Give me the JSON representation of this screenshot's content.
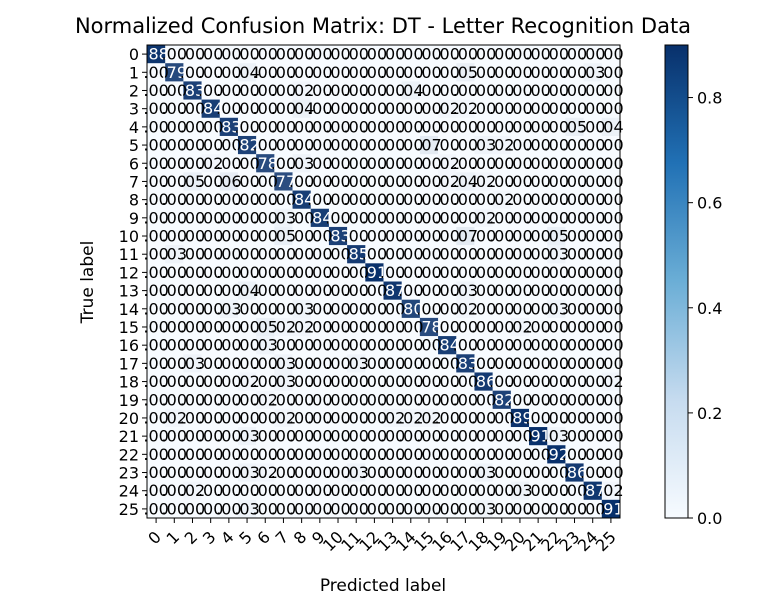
{
  "chart_data": {
    "type": "heatmap",
    "title": "Normalized Confusion Matrix: DT - Letter Recognition Data",
    "xlabel": "Predicted label",
    "ylabel": "True label",
    "x_tick_labels": [
      "0",
      "1",
      "2",
      "3",
      "4",
      "5",
      "6",
      "7",
      "8",
      "9",
      "10",
      "11",
      "12",
      "13",
      "14",
      "15",
      "16",
      "17",
      "18",
      "19",
      "20",
      "21",
      "22",
      "23",
      "24",
      "25"
    ],
    "y_tick_labels": [
      "0",
      "1",
      "2",
      "3",
      "4",
      "5",
      "6",
      "7",
      "8",
      "9",
      "10",
      "11",
      "12",
      "13",
      "14",
      "15",
      "16",
      "17",
      "18",
      "19",
      "20",
      "21",
      "22",
      "23",
      "24",
      "25"
    ],
    "diagonal_values": [
      0.88,
      0.79,
      0.83,
      0.84,
      0.83,
      0.82,
      0.78,
      0.77,
      0.84,
      0.84,
      0.83,
      0.85,
      0.91,
      0.87,
      0.8,
      0.78,
      0.84,
      0.83,
      0.86,
      0.82,
      0.89,
      0.91,
      0.92,
      0.86,
      0.87,
      0.91
    ],
    "off_diagonal_nonzero": [
      {
        "row": 1,
        "col": 5,
        "value": 0.04
      },
      {
        "row": 1,
        "col": 17,
        "value": 0.05
      },
      {
        "row": 1,
        "col": 24,
        "value": 0.03
      },
      {
        "row": 2,
        "col": 8,
        "value": 0.02
      },
      {
        "row": 2,
        "col": 14,
        "value": 0.04
      },
      {
        "row": 3,
        "col": 8,
        "value": 0.04
      },
      {
        "row": 3,
        "col": 16,
        "value": 0.02
      },
      {
        "row": 3,
        "col": 17,
        "value": 0.02
      },
      {
        "row": 4,
        "col": 23,
        "value": 0.05
      },
      {
        "row": 4,
        "col": 25,
        "value": 0.04
      },
      {
        "row": 5,
        "col": 15,
        "value": 0.07
      },
      {
        "row": 5,
        "col": 18,
        "value": 0.03
      },
      {
        "row": 5,
        "col": 19,
        "value": 0.02
      },
      {
        "row": 6,
        "col": 3,
        "value": 0.02
      },
      {
        "row": 6,
        "col": 8,
        "value": 0.03
      },
      {
        "row": 6,
        "col": 16,
        "value": 0.02
      },
      {
        "row": 7,
        "col": 2,
        "value": 0.05
      },
      {
        "row": 7,
        "col": 4,
        "value": 0.06
      },
      {
        "row": 7,
        "col": 16,
        "value": 0.02
      },
      {
        "row": 7,
        "col": 17,
        "value": 0.04
      },
      {
        "row": 7,
        "col": 18,
        "value": 0.02
      },
      {
        "row": 8,
        "col": 19,
        "value": 0.02
      },
      {
        "row": 9,
        "col": 7,
        "value": 0.03
      },
      {
        "row": 9,
        "col": 18,
        "value": 0.02
      },
      {
        "row": 10,
        "col": 7,
        "value": 0.05
      },
      {
        "row": 10,
        "col": 17,
        "value": 0.07
      },
      {
        "row": 10,
        "col": 22,
        "value": 0.05
      },
      {
        "row": 11,
        "col": 1,
        "value": 0.03
      },
      {
        "row": 11,
        "col": 22,
        "value": 0.03
      },
      {
        "row": 13,
        "col": 5,
        "value": 0.04
      },
      {
        "row": 13,
        "col": 17,
        "value": 0.03
      },
      {
        "row": 14,
        "col": 4,
        "value": 0.03
      },
      {
        "row": 14,
        "col": 8,
        "value": 0.03
      },
      {
        "row": 14,
        "col": 17,
        "value": 0.02
      },
      {
        "row": 14,
        "col": 22,
        "value": 0.03
      },
      {
        "row": 15,
        "col": 6,
        "value": 0.05
      },
      {
        "row": 15,
        "col": 7,
        "value": 0.02
      },
      {
        "row": 15,
        "col": 8,
        "value": 0.02
      },
      {
        "row": 15,
        "col": 20,
        "value": 0.02
      },
      {
        "row": 16,
        "col": 6,
        "value": 0.03
      },
      {
        "row": 17,
        "col": 2,
        "value": 0.03
      },
      {
        "row": 17,
        "col": 7,
        "value": 0.03
      },
      {
        "row": 17,
        "col": 11,
        "value": 0.03
      },
      {
        "row": 18,
        "col": 5,
        "value": 0.02
      },
      {
        "row": 18,
        "col": 7,
        "value": 0.03
      },
      {
        "row": 18,
        "col": 25,
        "value": 0.02
      },
      {
        "row": 19,
        "col": 6,
        "value": 0.02
      },
      {
        "row": 20,
        "col": 1,
        "value": 0.02
      },
      {
        "row": 20,
        "col": 7,
        "value": 0.02
      },
      {
        "row": 20,
        "col": 13,
        "value": 0.02
      },
      {
        "row": 20,
        "col": 14,
        "value": 0.02
      },
      {
        "row": 20,
        "col": 15,
        "value": 0.02
      },
      {
        "row": 21,
        "col": 5,
        "value": 0.03
      },
      {
        "row": 21,
        "col": 22,
        "value": 0.03
      },
      {
        "row": 23,
        "col": 5,
        "value": 0.03
      },
      {
        "row": 23,
        "col": 6,
        "value": 0.02
      },
      {
        "row": 23,
        "col": 11,
        "value": 0.03
      },
      {
        "row": 23,
        "col": 18,
        "value": 0.03
      },
      {
        "row": 24,
        "col": 2,
        "value": 0.02
      },
      {
        "row": 24,
        "col": 20,
        "value": 0.03
      },
      {
        "row": 24,
        "col": 25,
        "value": 0.02
      },
      {
        "row": 25,
        "col": 5,
        "value": 0.03
      },
      {
        "row": 25,
        "col": 18,
        "value": 0.03
      }
    ],
    "cell_number_format": "2 decimals, leading zero dropped (e.g. .00, .04, .83)",
    "colormap": "Blues",
    "text_color_light": "#ffffff",
    "text_color_dark": "#000000",
    "cmap_low": "#f7fbff",
    "cmap_high": "#08306b",
    "colorbar": {
      "min": 0.0,
      "max": 0.9,
      "tick_labels": [
        "0.0",
        "0.2",
        "0.4",
        "0.6",
        "0.8"
      ]
    }
  }
}
